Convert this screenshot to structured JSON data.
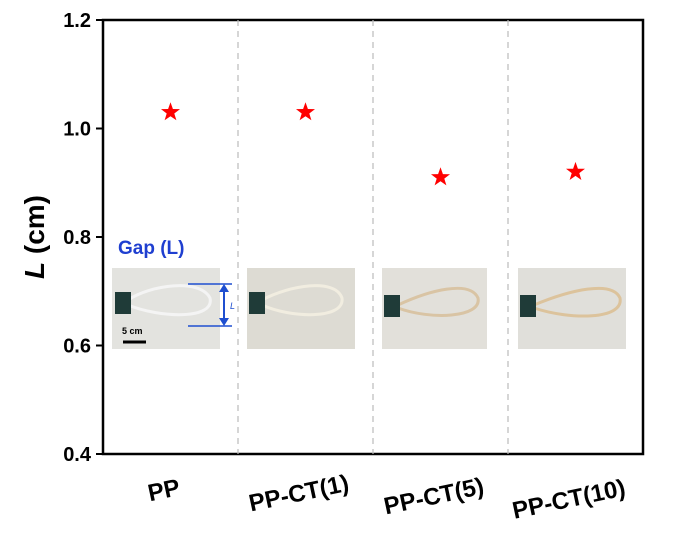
{
  "chart_data": {
    "type": "scatter",
    "ylabel_symbol": "L",
    "ylabel_unit": "(cm)",
    "categories": [
      "PP",
      "PP-CT(1)",
      "PP-CT(5)",
      "PP-CT(10)"
    ],
    "values": [
      1.03,
      1.03,
      0.91,
      0.92
    ],
    "color": "#ff0000",
    "marker": "star",
    "ylim": [
      0.4,
      1.2
    ],
    "yticks": [
      0.4,
      0.6,
      0.8,
      {
        "value": 1.0,
        "label": "1.0"
      },
      1.2
    ],
    "separators": true,
    "annotations": {
      "inset_title": "Gap (L)",
      "scale_bar": "5 cm",
      "gap_symbol": "L"
    }
  }
}
